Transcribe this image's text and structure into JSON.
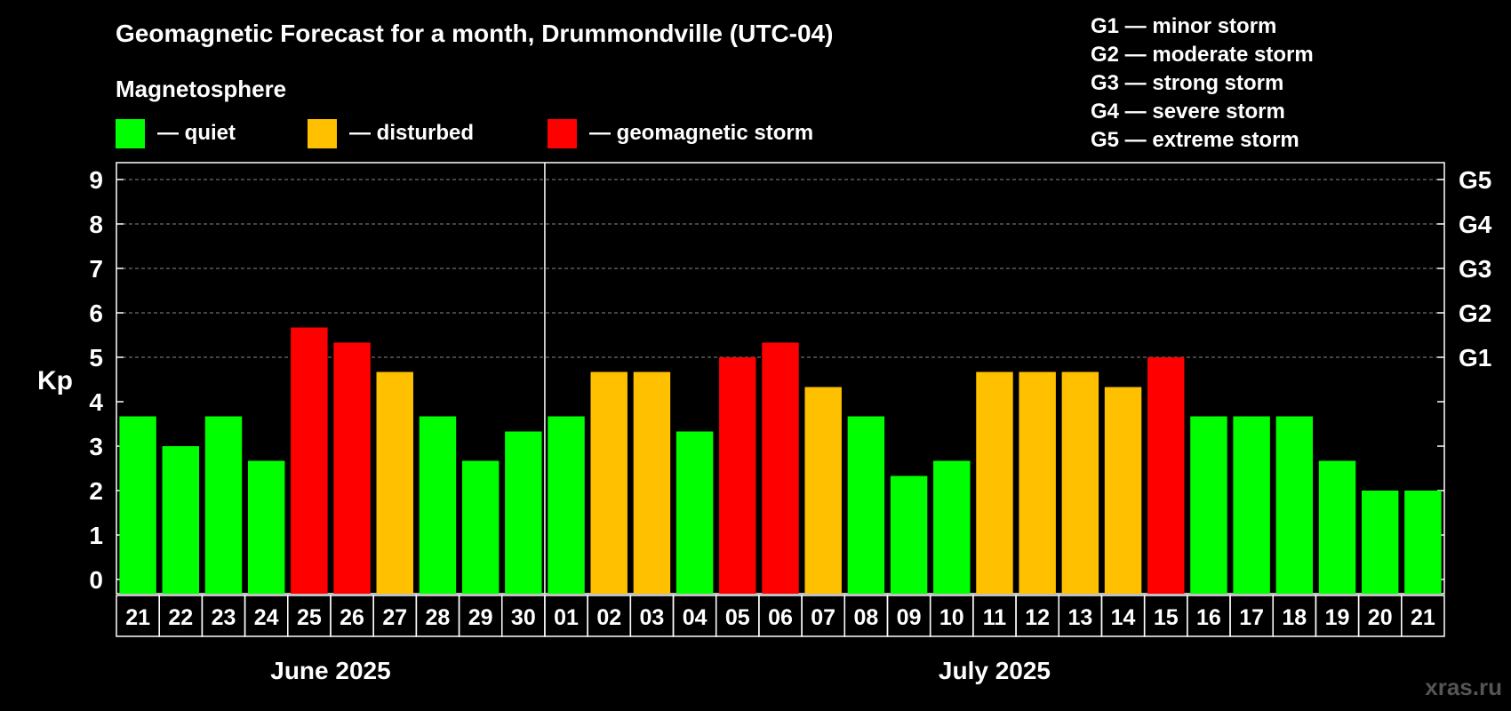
{
  "chart_data": {
    "type": "bar",
    "title": "Geomagnetic Forecast for a month, Drummondville (UTC-04)",
    "ylabel": "Kp",
    "ylim": [
      0,
      9
    ],
    "yticks": [
      "0",
      "1",
      "2",
      "3",
      "4",
      "5",
      "6",
      "7",
      "8",
      "9"
    ],
    "right_ticks": [
      {
        "kp": 5,
        "label": "G1"
      },
      {
        "kp": 6,
        "label": "G2"
      },
      {
        "kp": 7,
        "label": "G3"
      },
      {
        "kp": 8,
        "label": "G4"
      },
      {
        "kp": 9,
        "label": "G5"
      }
    ],
    "categories": [
      "21",
      "22",
      "23",
      "24",
      "25",
      "26",
      "27",
      "28",
      "29",
      "30",
      "01",
      "02",
      "03",
      "04",
      "05",
      "06",
      "07",
      "08",
      "09",
      "10",
      "11",
      "12",
      "13",
      "14",
      "15",
      "16",
      "17",
      "18",
      "19",
      "20",
      "21"
    ],
    "values": [
      3.67,
      3.0,
      3.67,
      2.67,
      5.67,
      5.33,
      4.67,
      3.67,
      2.67,
      3.33,
      3.67,
      4.67,
      4.67,
      3.33,
      5.0,
      5.33,
      4.33,
      3.67,
      2.33,
      2.67,
      4.67,
      4.67,
      4.67,
      4.33,
      5.0,
      3.67,
      3.67,
      3.67,
      2.67,
      2.0,
      2.0
    ],
    "states": [
      "quiet",
      "quiet",
      "quiet",
      "quiet",
      "storm",
      "storm",
      "disturbed",
      "quiet",
      "quiet",
      "quiet",
      "quiet",
      "disturbed",
      "disturbed",
      "quiet",
      "storm",
      "storm",
      "disturbed",
      "quiet",
      "quiet",
      "quiet",
      "disturbed",
      "disturbed",
      "disturbed",
      "disturbed",
      "storm",
      "quiet",
      "quiet",
      "quiet",
      "quiet",
      "quiet",
      "quiet"
    ],
    "months": [
      {
        "label": "June 2025",
        "start": 0,
        "end": 9
      },
      {
        "label": "July 2025",
        "start": 10,
        "end": 30
      }
    ],
    "grid": true
  },
  "legend": {
    "heading": "Magnetosphere",
    "items": [
      {
        "key": "quiet",
        "label": "— quiet",
        "color": "#00ff00"
      },
      {
        "key": "disturbed",
        "label": "— disturbed",
        "color": "#ffc000"
      },
      {
        "key": "storm",
        "label": "— geomagnetic storm",
        "color": "#ff0000"
      }
    ]
  },
  "storm_scale": [
    "G1 — minor storm",
    "G2 — moderate storm",
    "G3 — strong storm",
    "G4 — severe storm",
    "G5 — extreme storm"
  ],
  "watermark": "xras.ru"
}
